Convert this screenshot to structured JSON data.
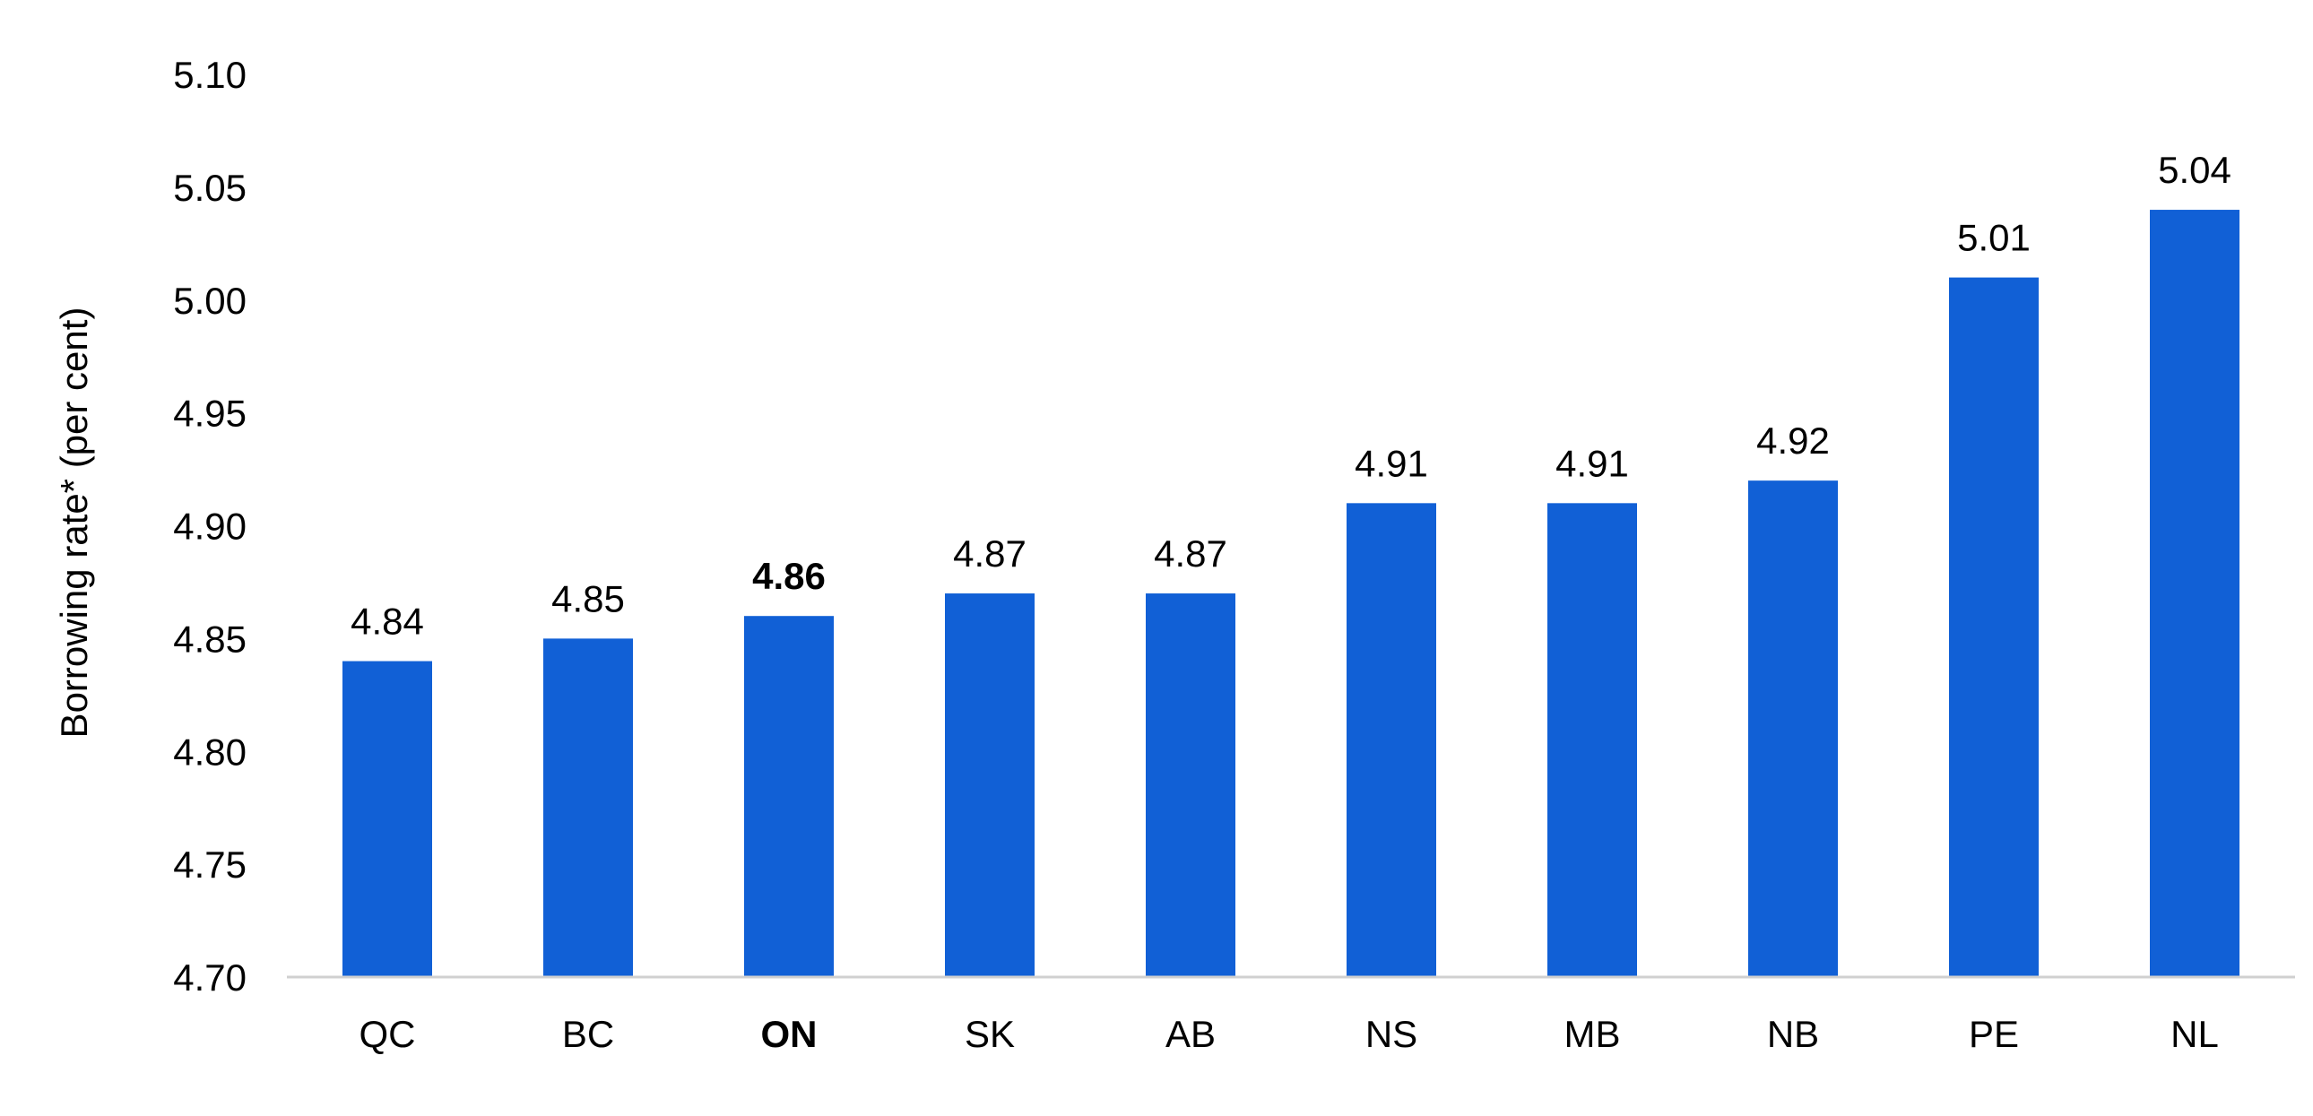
{
  "chart_data": {
    "type": "bar",
    "title": "",
    "xlabel": "",
    "ylabel": "Borrowing rate* (per cent)",
    "categories": [
      "QC",
      "BC",
      "ON",
      "SK",
      "AB",
      "NS",
      "MB",
      "NB",
      "PE",
      "NL"
    ],
    "values": [
      4.84,
      4.85,
      4.86,
      4.87,
      4.87,
      4.91,
      4.91,
      4.92,
      5.01,
      5.04
    ],
    "value_labels": [
      "4.84",
      "4.85",
      "4.86",
      "4.87",
      "4.87",
      "4.91",
      "4.91",
      "4.92",
      "5.01",
      "5.04"
    ],
    "highlighted_category": "ON",
    "ylim": [
      4.7,
      5.1
    ],
    "yticks": [
      "4.70",
      "4.75",
      "4.80",
      "4.85",
      "4.90",
      "4.95",
      "5.00",
      "5.05",
      "5.10"
    ],
    "grid": false,
    "legend": "none",
    "colors": {
      "bar": "#1160D6",
      "axis": "#D0D0D0",
      "text": "#000000"
    }
  }
}
